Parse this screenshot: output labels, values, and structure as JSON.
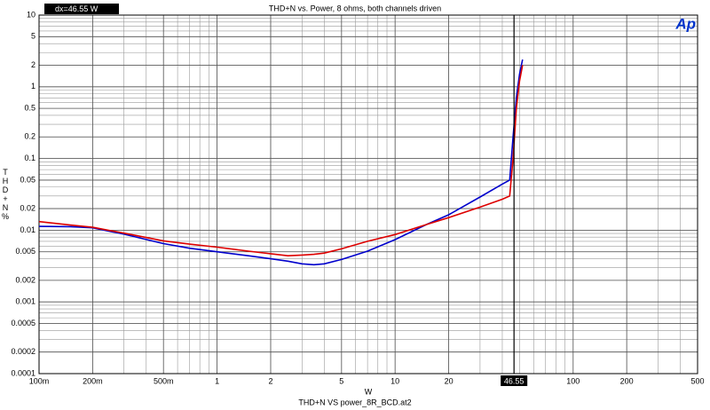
{
  "chart_data": {
    "type": "line",
    "title": "THD+N vs. Power, 8 ohms, both channels driven",
    "xlabel": "W",
    "ylabel": "THD+N %",
    "footer": "THD+N VS power_8R_BCD.at2",
    "logo": "Ap",
    "xlog": true,
    "ylog": true,
    "grid": true,
    "xlim": [
      0.1,
      500
    ],
    "ylim": [
      0.0001,
      10
    ],
    "xticks": [
      {
        "value": 0.1,
        "label": "100m"
      },
      {
        "value": 0.2,
        "label": "200m"
      },
      {
        "value": 0.5,
        "label": "500m"
      },
      1,
      2,
      5,
      10,
      20,
      100,
      200,
      500
    ],
    "yticks": [
      10,
      5,
      2,
      1,
      0.5,
      0.2,
      0.1,
      0.05,
      0.02,
      0.01,
      0.005,
      0.002,
      0.001,
      0.0005,
      0.0002,
      0.0001
    ],
    "cursor": {
      "value": 46.55,
      "label": "46.55",
      "readout": "dx=46.55  W"
    },
    "series": [
      {
        "color": "#0000cc",
        "x": [
          0.1,
          0.15,
          0.2,
          0.3,
          0.5,
          0.7,
          1,
          1.5,
          2,
          2.5,
          3,
          3.5,
          4,
          5,
          7,
          10,
          15,
          20,
          30,
          40,
          44,
          46,
          48,
          50,
          52
        ],
        "values": [
          0.0113,
          0.0112,
          0.0108,
          0.0088,
          0.0065,
          0.0056,
          0.005,
          0.0044,
          0.004,
          0.0037,
          0.0034,
          0.0033,
          0.0034,
          0.0039,
          0.0051,
          0.0074,
          0.012,
          0.0164,
          0.029,
          0.044,
          0.05,
          0.2,
          0.7,
          1.5,
          2.4
        ]
      },
      {
        "color": "#dd0000",
        "x": [
          0.1,
          0.15,
          0.2,
          0.3,
          0.5,
          0.7,
          1,
          1.5,
          2,
          2.5,
          3,
          3.5,
          4,
          5,
          7,
          10,
          15,
          20,
          30,
          40,
          44,
          46,
          48,
          50,
          52
        ],
        "values": [
          0.0132,
          0.0118,
          0.011,
          0.0091,
          0.0071,
          0.0064,
          0.0058,
          0.0051,
          0.0047,
          0.0044,
          0.0045,
          0.0046,
          0.0048,
          0.0055,
          0.007,
          0.0087,
          0.012,
          0.015,
          0.021,
          0.027,
          0.03,
          0.1,
          0.5,
          1.2,
          2.0
        ]
      }
    ]
  }
}
